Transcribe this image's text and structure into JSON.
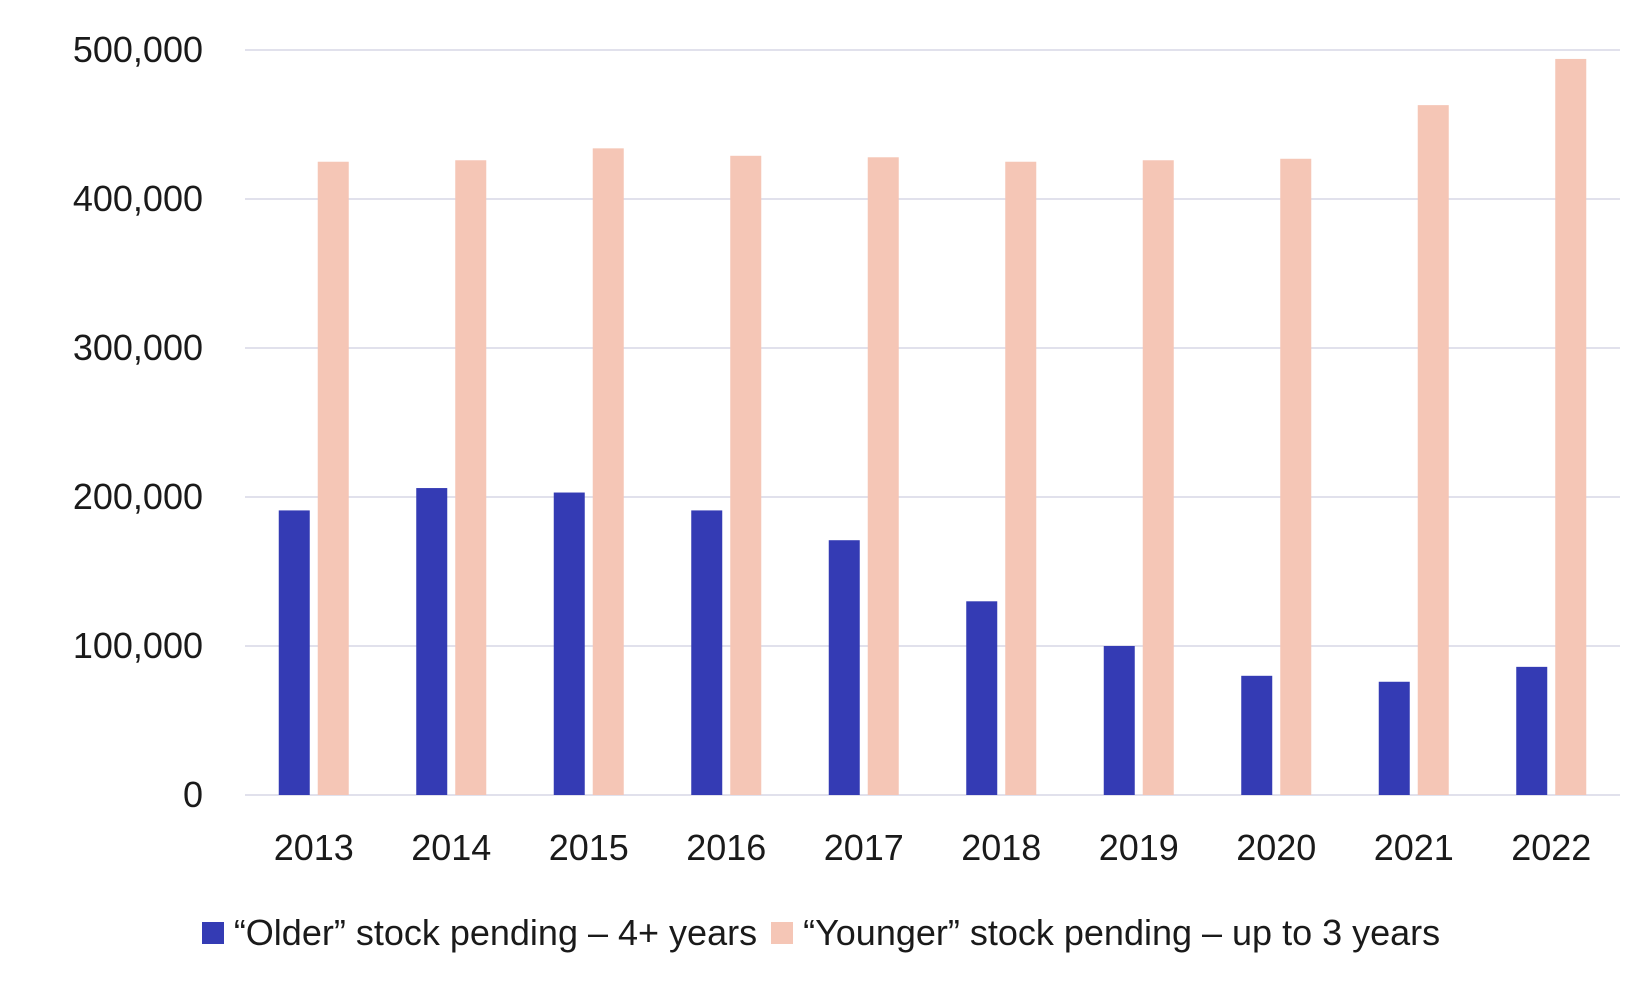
{
  "chart_data": {
    "type": "bar",
    "categories": [
      "2013",
      "2014",
      "2015",
      "2016",
      "2017",
      "2018",
      "2019",
      "2020",
      "2021",
      "2022"
    ],
    "series": [
      {
        "name": "“Older” stock pending – 4+ years",
        "color": "#343bb4",
        "values": [
          191000,
          206000,
          203000,
          191000,
          171000,
          130000,
          100000,
          80000,
          76000,
          86000
        ]
      },
      {
        "name": "“Younger” stock pending – up to 3 years",
        "color": "#f5c6b6",
        "values": [
          425000,
          426000,
          434000,
          429000,
          428000,
          425000,
          426000,
          427000,
          463000,
          494000
        ]
      }
    ],
    "yticks": [
      "0",
      "100,000",
      "200,000",
      "300,000",
      "400,000",
      "500,000"
    ],
    "ylim": [
      0,
      500000
    ],
    "title": "",
    "xlabel": "",
    "ylabel": "",
    "grid": true,
    "legend_position": "bottom",
    "gridline_color": "#e1e1ec"
  }
}
